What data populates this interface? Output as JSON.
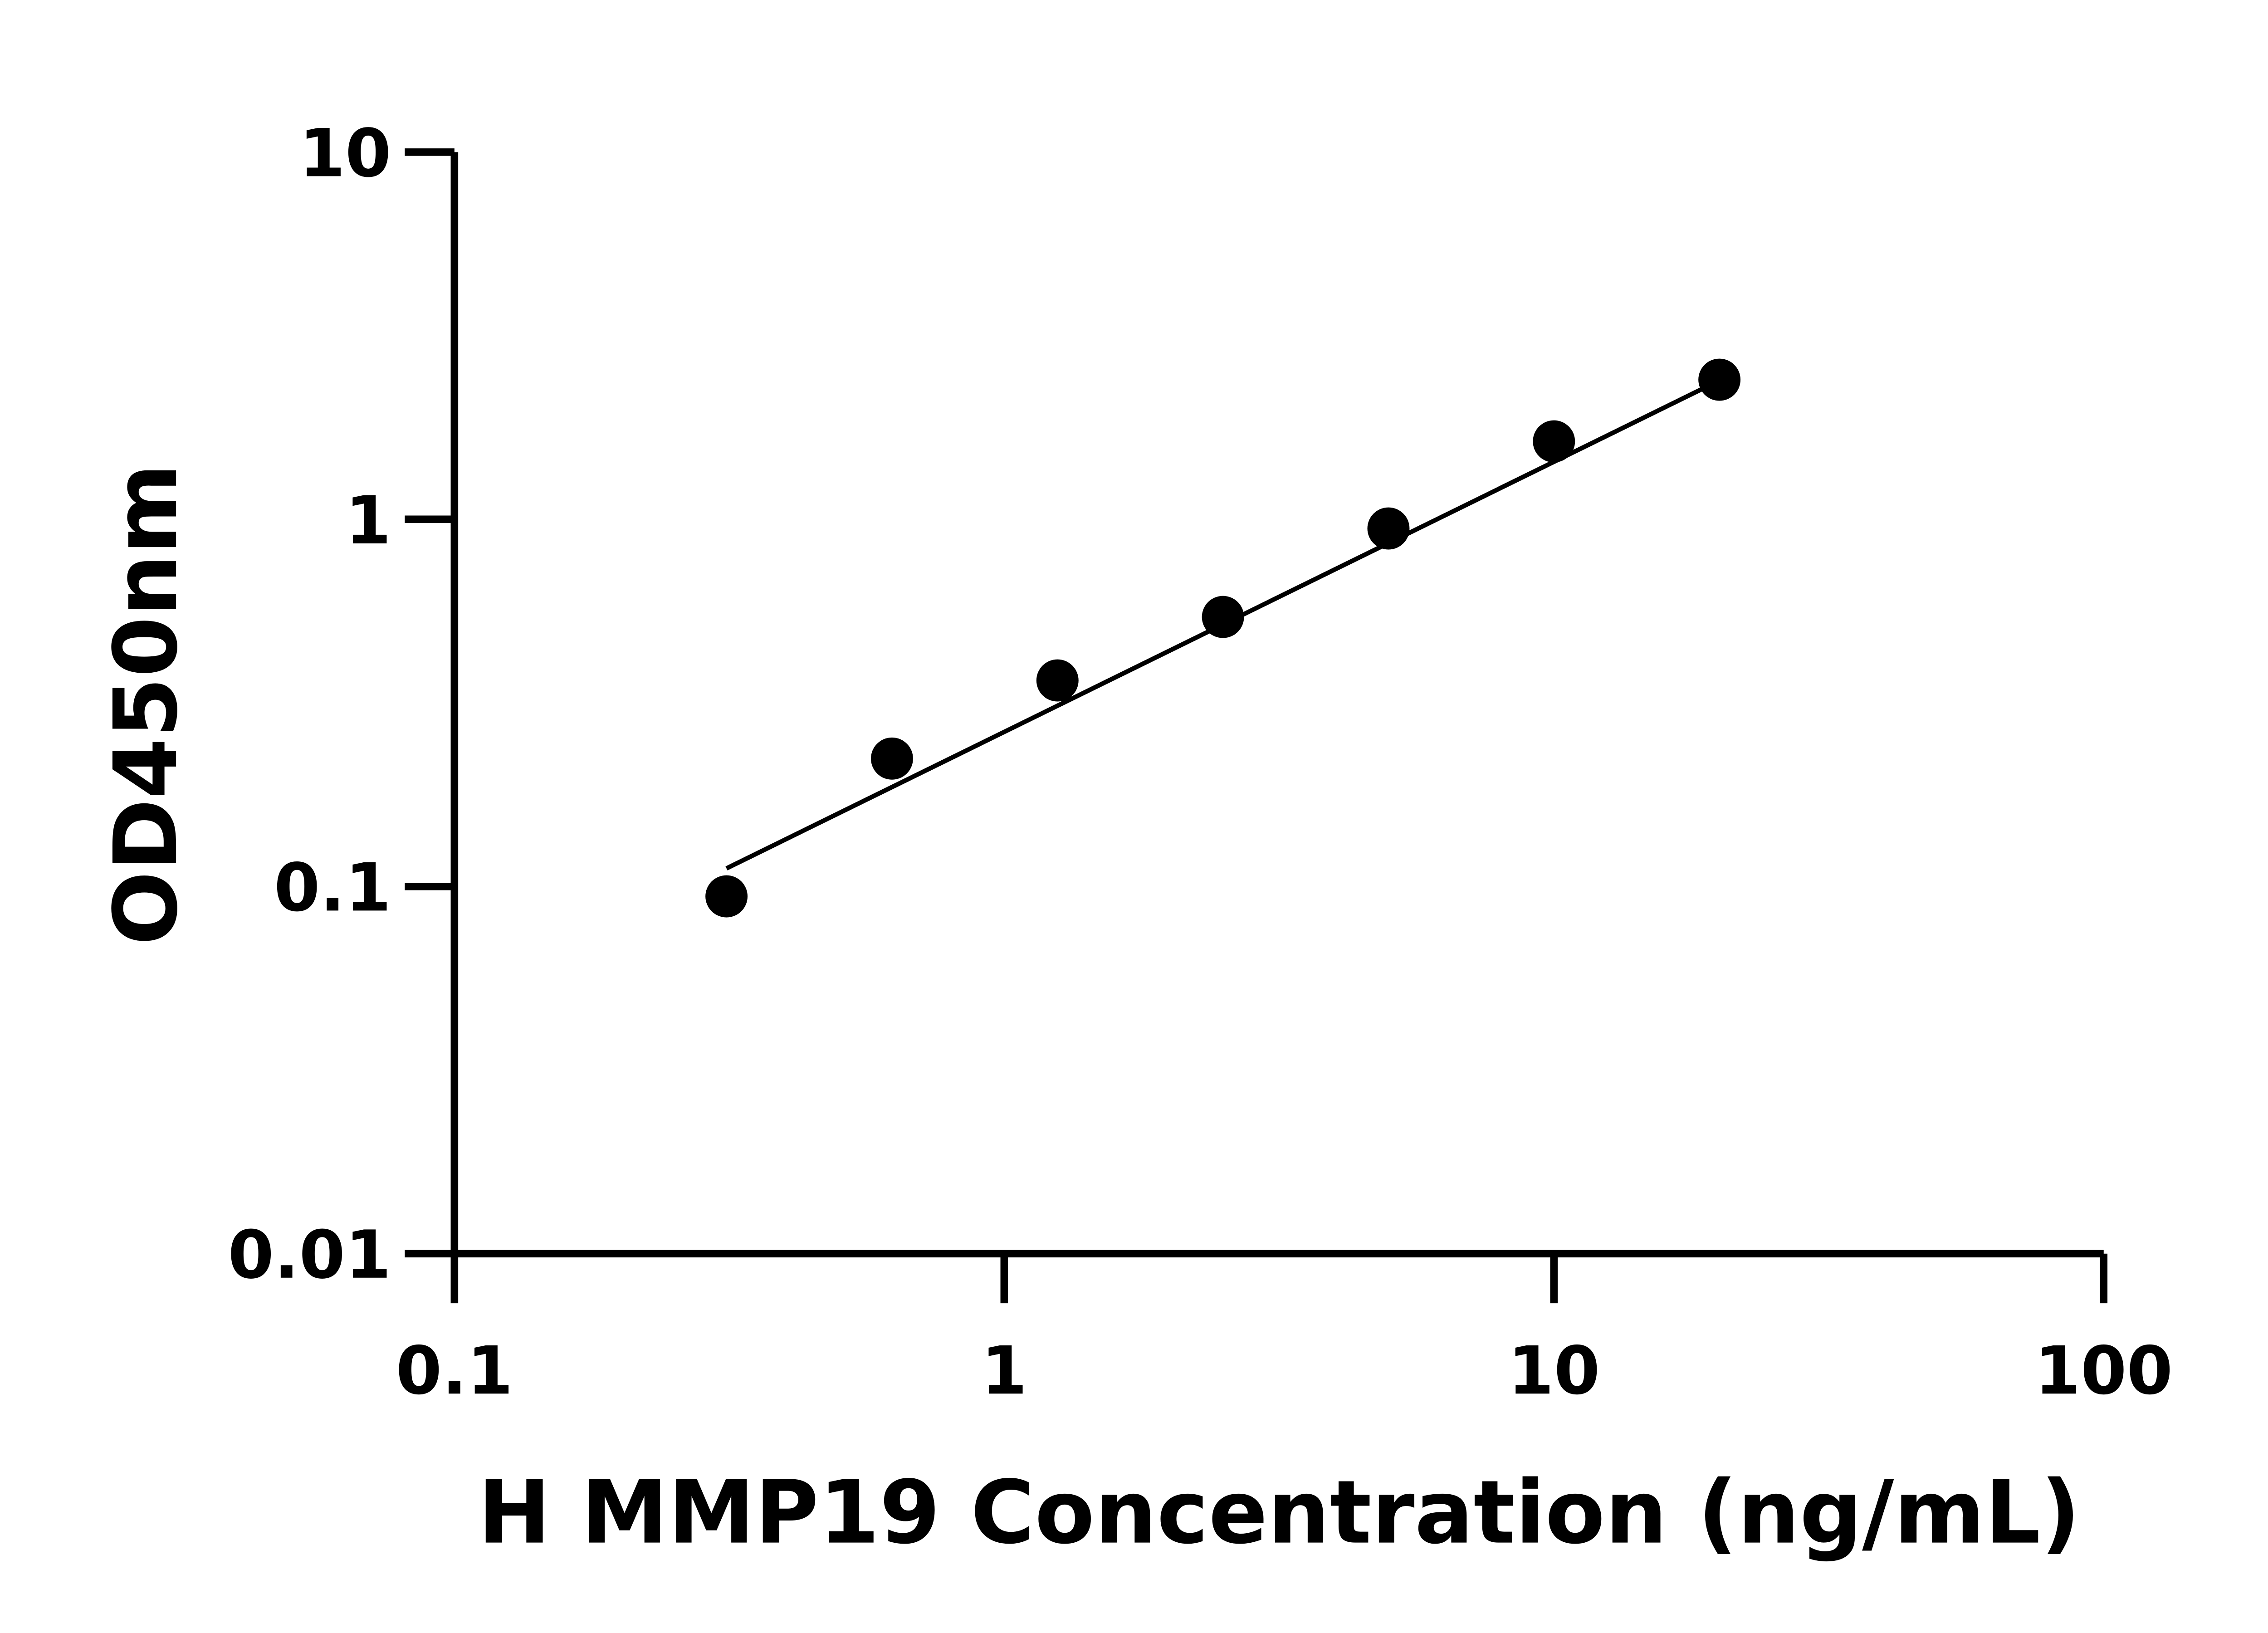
{
  "chart_data": {
    "type": "scatter",
    "title": "",
    "xlabel": "H MMP19 Concentration (ng/mL)",
    "ylabel": "OD450nm",
    "xscale": "log",
    "yscale": "log",
    "xlim": [
      0.1,
      100
    ],
    "ylim": [
      0.01,
      10
    ],
    "xticks": [
      "0.1",
      "1",
      "10",
      "100"
    ],
    "yticks": [
      "0.01",
      "0.1",
      "1",
      "10"
    ],
    "grid": false,
    "legend": "none",
    "points": [
      {
        "x": 0.3125,
        "y": 0.094
      },
      {
        "x": 0.625,
        "y": 0.223
      },
      {
        "x": 1.25,
        "y": 0.364
      },
      {
        "x": 2.5,
        "y": 0.542
      },
      {
        "x": 5,
        "y": 0.944
      },
      {
        "x": 10,
        "y": 1.63
      },
      {
        "x": 20,
        "y": 2.4
      }
    ],
    "fit_line": [
      {
        "x": 0.3125,
        "y": 0.112
      },
      {
        "x": 19,
        "y": 2.3
      }
    ],
    "colors": {
      "points": "#000000",
      "line": "#000000",
      "axes": "#000000"
    }
  }
}
